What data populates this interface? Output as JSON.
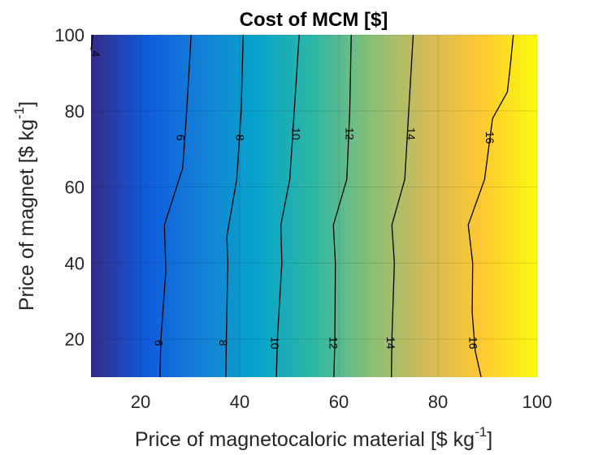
{
  "chart_data": {
    "type": "heatmap",
    "title": "Cost of MCM [$]",
    "xlabel": "Price of magnetocaloric material [$ kg",
    "xlabel_sup": "-1",
    "xlabel_end": "]",
    "ylabel": "Price of magnet [$ kg",
    "ylabel_sup": "-1",
    "ylabel_end": "]",
    "xlim": [
      10,
      100
    ],
    "ylim": [
      10,
      100
    ],
    "xticks": [
      20,
      40,
      60,
      80,
      100
    ],
    "yticks": [
      20,
      40,
      60,
      80,
      100
    ],
    "grid": true,
    "colormap": [
      "#352a87",
      "#0f5cdd",
      "#1481d6",
      "#06a4ca",
      "#2eb7a4",
      "#87bf77",
      "#d1bb59",
      "#fec832",
      "#f9fb0e"
    ],
    "contours": [
      {
        "level": 4,
        "label": "4",
        "points": [
          [
            10.4,
            100
          ],
          [
            10,
            96
          ]
        ],
        "labels_at": [
          [
            10.8,
            95
          ]
        ]
      },
      {
        "level": 6,
        "label": "6",
        "points": [
          [
            23.9,
            10
          ],
          [
            24.1,
            20
          ],
          [
            25.1,
            38
          ],
          [
            24.8,
            50
          ],
          [
            28.5,
            65
          ],
          [
            29.3,
            80
          ],
          [
            30.2,
            100
          ]
        ],
        "labels_at": [
          [
            23.5,
            19
          ],
          [
            27.9,
            73
          ]
        ]
      },
      {
        "level": 8,
        "label": "8",
        "points": [
          [
            37.2,
            10
          ],
          [
            37.3,
            20
          ],
          [
            37.6,
            40
          ],
          [
            37.4,
            47
          ],
          [
            39.4,
            62
          ],
          [
            40.3,
            80
          ],
          [
            40.7,
            100
          ]
        ],
        "labels_at": [
          [
            36.5,
            19
          ],
          [
            39.9,
            73
          ]
        ]
      },
      {
        "level": 10,
        "label": "10",
        "points": [
          [
            47.4,
            10
          ],
          [
            47.6,
            20
          ],
          [
            48.5,
            40
          ],
          [
            48.3,
            50
          ],
          [
            50.1,
            62
          ],
          [
            51.0,
            80
          ],
          [
            52.0,
            100
          ]
        ],
        "labels_at": [
          [
            46.9,
            19
          ],
          [
            51.2,
            74
          ]
        ]
      },
      {
        "level": 12,
        "label": "12",
        "points": [
          [
            59.0,
            10
          ],
          [
            59.2,
            20
          ],
          [
            59.3,
            40
          ],
          [
            58.9,
            50
          ],
          [
            61.6,
            62
          ],
          [
            62.2,
            80
          ],
          [
            62.5,
            100
          ]
        ],
        "labels_at": [
          [
            58.7,
            19
          ],
          [
            62.0,
            74
          ]
        ]
      },
      {
        "level": 14,
        "label": "14",
        "points": [
          [
            70.6,
            10
          ],
          [
            70.7,
            20
          ],
          [
            71.2,
            40
          ],
          [
            70.7,
            50
          ],
          [
            73.3,
            62
          ],
          [
            74.1,
            80
          ],
          [
            75.0,
            100
          ]
        ],
        "labels_at": [
          [
            70.3,
            19
          ],
          [
            74.4,
            74
          ]
        ]
      },
      {
        "level": 16,
        "label": "16",
        "points": [
          [
            88.7,
            10
          ],
          [
            87.5,
            17
          ],
          [
            86.9,
            27
          ],
          [
            87.0,
            40
          ],
          [
            86.1,
            50
          ],
          [
            89.4,
            62
          ],
          [
            91.0,
            78
          ],
          [
            94.0,
            85
          ],
          [
            94.6,
            92
          ],
          [
            95.2,
            100
          ]
        ],
        "labels_at": [
          [
            86.9,
            19
          ],
          [
            90.3,
            73
          ]
        ]
      }
    ]
  }
}
